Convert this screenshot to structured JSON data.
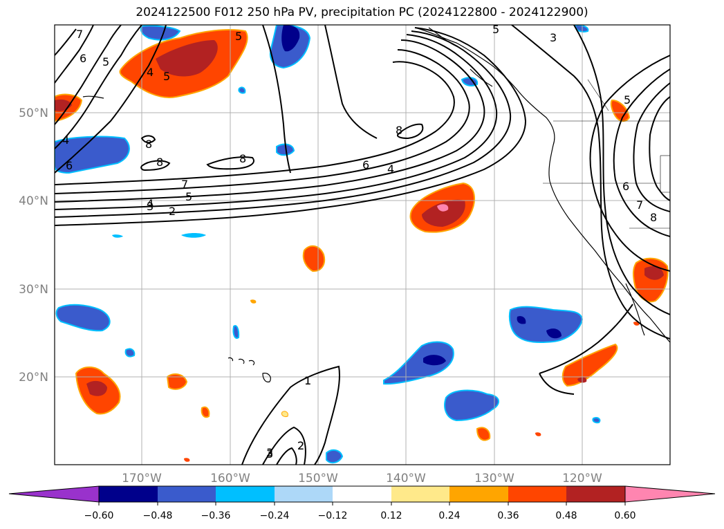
{
  "title": "2024122500 F012 250 hPa PV, precipitation PC (2024122800 - 2024122900)",
  "lat_labels": [
    "50°N",
    "40°N",
    "30°N",
    "20°N"
  ],
  "lon_labels": [
    "170°W",
    "160°W",
    "150°W",
    "140°W",
    "130°W",
    "120°W"
  ],
  "colorbar": {
    "colors": [
      "#9932cc",
      "#00008b",
      "#3a5bcc",
      "#00bfff",
      "#add8f8",
      "#ffffff",
      "#ffe98a",
      "#ffa500",
      "#ff4500",
      "#b22222",
      "#ff85b0"
    ],
    "ticks": [
      "−0.60",
      "−0.48",
      "−0.36",
      "−0.24",
      "−0.12",
      "0.12",
      "0.24",
      "0.36",
      "0.48",
      "0.60"
    ]
  },
  "pv_contour_labels": [
    "7",
    "6",
    "5",
    "4",
    "5",
    "3",
    "2",
    "1",
    "2",
    "3",
    "4",
    "5",
    "6",
    "7",
    "8",
    "8",
    "8",
    "8",
    "6",
    "4",
    "5",
    "4",
    "6",
    "7",
    "8",
    "5",
    "3",
    "5",
    "1",
    "2",
    "3"
  ]
}
